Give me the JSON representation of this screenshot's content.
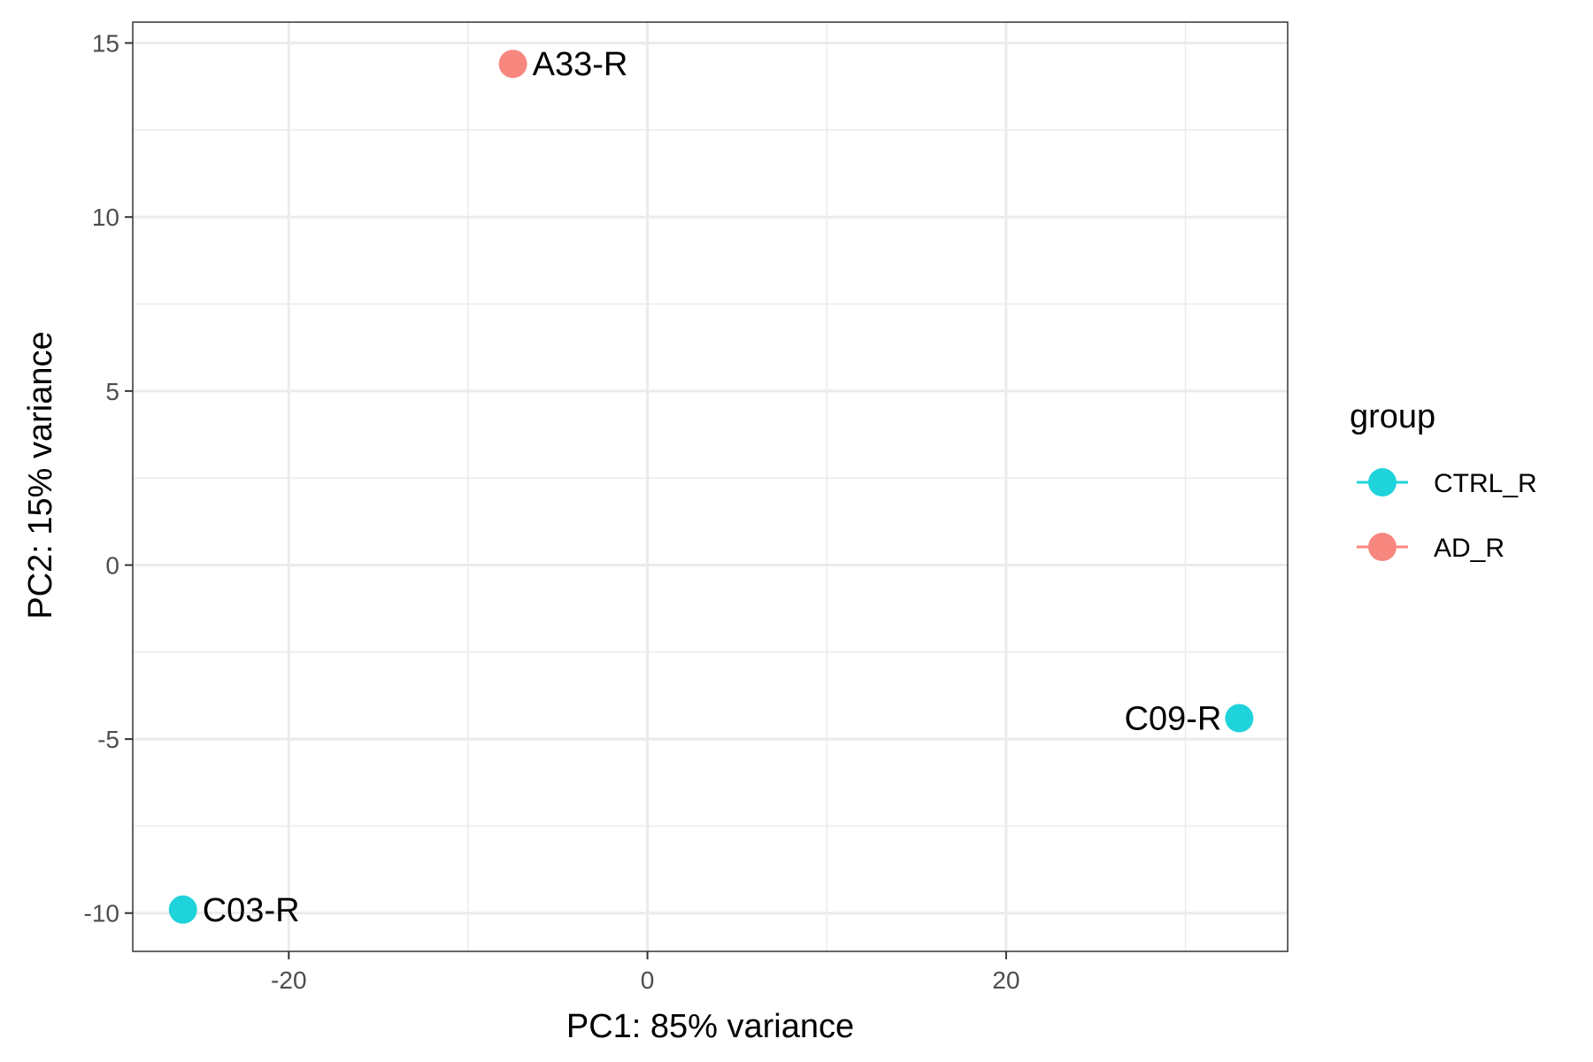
{
  "chart_data": {
    "type": "scatter",
    "title": "",
    "xlabel": "PC1: 85% variance",
    "ylabel": "PC2: 15% variance",
    "xlim": [
      -28.7,
      35.7
    ],
    "ylim": [
      -11.1,
      15.6
    ],
    "x_ticks": [
      -20,
      0,
      20
    ],
    "x_tick_labels": [
      "-20",
      "0",
      "20"
    ],
    "y_ticks": [
      -10,
      -5,
      0,
      5,
      10,
      15
    ],
    "y_tick_labels": [
      "-10",
      "-5",
      "0",
      "5",
      "10",
      "15"
    ],
    "x_minor_ticks": [
      -10,
      10,
      30
    ],
    "y_minor_ticks": [
      -7.5,
      -2.5,
      2.5,
      7.5,
      12.5
    ],
    "grid": true,
    "legend": {
      "title": "group",
      "placement": "right",
      "entries": [
        {
          "name": "CTRL_R",
          "color": "#1fd3db"
        },
        {
          "name": "AD_R",
          "color": "#f8877f"
        }
      ]
    },
    "points": [
      {
        "label": "A33-R",
        "x": -7.5,
        "y": 14.4,
        "group": "AD_R"
      },
      {
        "label": "C09-R",
        "x": 33.0,
        "y": -4.4,
        "group": "CTRL_R"
      },
      {
        "label": "C03-R",
        "x": -25.9,
        "y": -9.9,
        "group": "CTRL_R"
      }
    ]
  }
}
